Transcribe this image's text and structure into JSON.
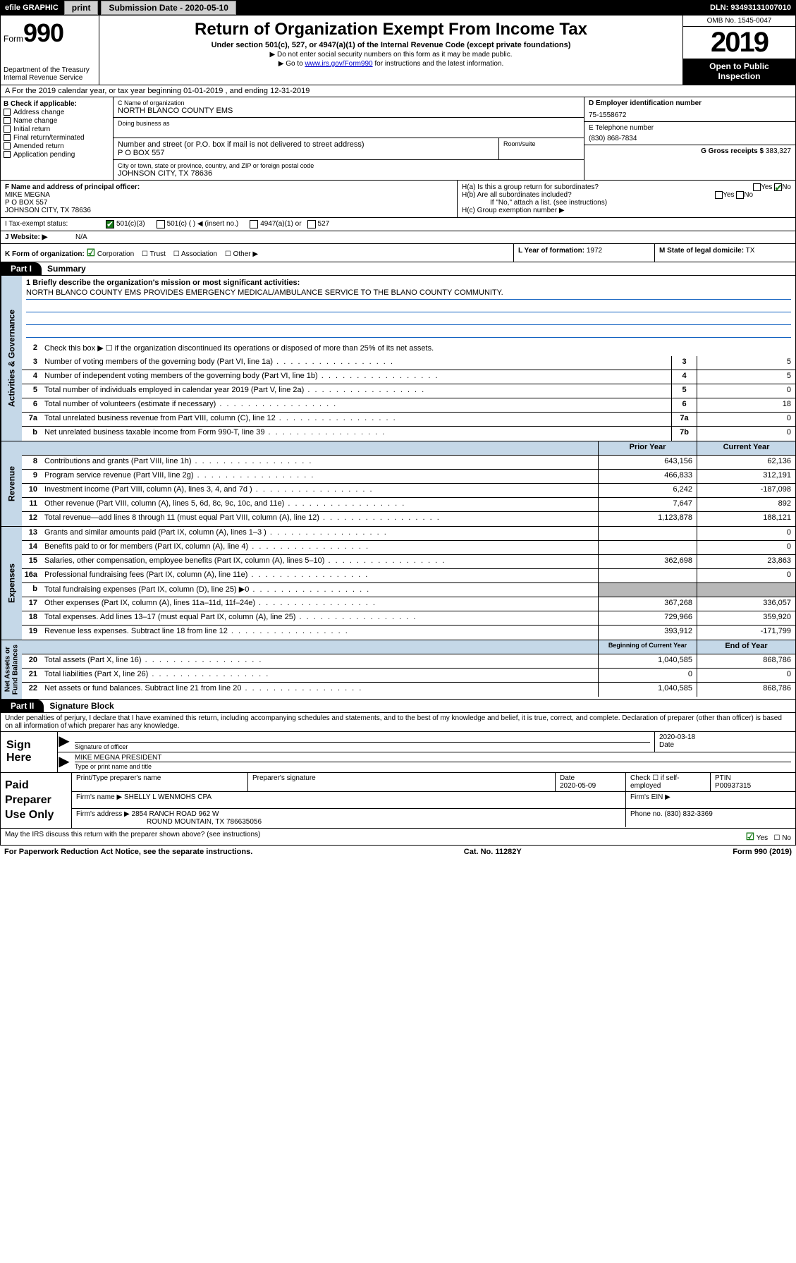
{
  "topbar": {
    "efile": "efile GRAPHIC",
    "print": "print",
    "sub_label": "Submission Date - 2020-05-10",
    "dln": "DLN: 93493131007010"
  },
  "header": {
    "form": "Form",
    "form_num": "990",
    "dept": "Department of the Treasury\nInternal Revenue Service",
    "title": "Return of Organization Exempt From Income Tax",
    "sub1": "Under section 501(c), 527, or 4947(a)(1) of the Internal Revenue Code (except private foundations)",
    "sub2": "▶ Do not enter social security numbers on this form as it may be made public.",
    "sub3": "▶ Go to www.irs.gov/Form990 for instructions and the latest information.",
    "omb": "OMB No. 1545-0047",
    "year": "2019",
    "inspect": "Open to Public\nInspection"
  },
  "row_a": "A For the 2019 calendar year, or tax year beginning 01-01-2019   , and ending 12-31-2019",
  "col_b": {
    "title": "B Check if applicable:",
    "opts": [
      "Address change",
      "Name change",
      "Initial return",
      "Final return/terminated",
      "Amended return",
      "Application pending"
    ]
  },
  "col_c": {
    "name_lbl": "C Name of organization",
    "name": "NORTH BLANCO COUNTY EMS",
    "dba_lbl": "Doing business as",
    "addr_lbl": "Number and street (or P.O. box if mail is not delivered to street address)",
    "addr": "P O BOX 557",
    "room_lbl": "Room/suite",
    "city_lbl": "City or town, state or province, country, and ZIP or foreign postal code",
    "city": "JOHNSON CITY, TX  78636"
  },
  "col_d": {
    "ein_lbl": "D Employer identification number",
    "ein": "75-1558672",
    "tel_lbl": "E Telephone number",
    "tel": "(830) 868-7834",
    "gross_lbl": "G Gross receipts $",
    "gross": "383,327"
  },
  "col_f": {
    "lbl": "F Name and address of principal officer:",
    "name": "MIKE MEGNA",
    "addr1": "P O BOX 557",
    "addr2": "JOHNSON CITY, TX  78636"
  },
  "col_h": {
    "ha": "H(a)  Is this a group return for subordinates?",
    "hb": "H(b)  Are all subordinates included?",
    "hb2": "If \"No,\" attach a list. (see instructions)",
    "hc": "H(c)  Group exemption number ▶",
    "yes": "Yes",
    "no": "No"
  },
  "row_i": {
    "lbl": "I     Tax-exempt status:",
    "o1": "501(c)(3)",
    "o2": "501(c) (  ) ◀ (insert no.)",
    "o3": "4947(a)(1) or",
    "o4": "527"
  },
  "row_j": {
    "lbl": "J   Website: ▶",
    "val": "N/A"
  },
  "row_k": {
    "lbl": "K Form of organization:",
    "corp": "Corporation",
    "trust": "Trust",
    "assoc": "Association",
    "other": "Other ▶",
    "l_lbl": "L Year of formation:",
    "l_val": "1972",
    "m_lbl": "M State of legal domicile:",
    "m_val": "TX"
  },
  "part1": {
    "hdr": "Part I",
    "title": "Summary"
  },
  "mission": {
    "lbl": "1  Briefly describe the organization's mission or most significant activities:",
    "text": "NORTH BLANCO COUNTY EMS PROVIDES EMERGENCY MEDICAL/AMBULANCE SERVICE TO THE BLANO COUNTY COMMUNITY."
  },
  "vtabs": {
    "gov": "Activities & Governance",
    "rev": "Revenue",
    "exp": "Expenses",
    "net": "Net Assets or\nFund Balances"
  },
  "lines_gov": [
    {
      "n": "2",
      "d": "Check this box ▶ ☐  if the organization discontinued its operations or disposed of more than 25% of its net assets.",
      "c": "",
      "v": ""
    },
    {
      "n": "3",
      "d": "Number of voting members of the governing body (Part VI, line 1a)",
      "c": "3",
      "v": "5"
    },
    {
      "n": "4",
      "d": "Number of independent voting members of the governing body (Part VI, line 1b)",
      "c": "4",
      "v": "5"
    },
    {
      "n": "5",
      "d": "Total number of individuals employed in calendar year 2019 (Part V, line 2a)",
      "c": "5",
      "v": "0"
    },
    {
      "n": "6",
      "d": "Total number of volunteers (estimate if necessary)",
      "c": "6",
      "v": "18"
    },
    {
      "n": "7a",
      "d": "Total unrelated business revenue from Part VIII, column (C), line 12",
      "c": "7a",
      "v": "0"
    },
    {
      "n": "b",
      "d": "Net unrelated business taxable income from Form 990-T, line 39",
      "c": "7b",
      "v": "0"
    }
  ],
  "year_hdr": {
    "prior": "Prior Year",
    "current": "Current Year"
  },
  "lines_rev": [
    {
      "n": "8",
      "d": "Contributions and grants (Part VIII, line 1h)",
      "p": "643,156",
      "c": "62,136"
    },
    {
      "n": "9",
      "d": "Program service revenue (Part VIII, line 2g)",
      "p": "466,833",
      "c": "312,191"
    },
    {
      "n": "10",
      "d": "Investment income (Part VIII, column (A), lines 3, 4, and 7d )",
      "p": "6,242",
      "c": "-187,098"
    },
    {
      "n": "11",
      "d": "Other revenue (Part VIII, column (A), lines 5, 6d, 8c, 9c, 10c, and 11e)",
      "p": "7,647",
      "c": "892"
    },
    {
      "n": "12",
      "d": "Total revenue—add lines 8 through 11 (must equal Part VIII, column (A), line 12)",
      "p": "1,123,878",
      "c": "188,121"
    }
  ],
  "lines_exp": [
    {
      "n": "13",
      "d": "Grants and similar amounts paid (Part IX, column (A), lines 1–3 )",
      "p": "",
      "c": "0"
    },
    {
      "n": "14",
      "d": "Benefits paid to or for members (Part IX, column (A), line 4)",
      "p": "",
      "c": "0"
    },
    {
      "n": "15",
      "d": "Salaries, other compensation, employee benefits (Part IX, column (A), lines 5–10)",
      "p": "362,698",
      "c": "23,863"
    },
    {
      "n": "16a",
      "d": "Professional fundraising fees (Part IX, column (A), line 11e)",
      "p": "",
      "c": "0"
    },
    {
      "n": "b",
      "d": "Total fundraising expenses (Part IX, column (D), line 25) ▶0",
      "p": "GREY",
      "c": "GREY"
    },
    {
      "n": "17",
      "d": "Other expenses (Part IX, column (A), lines 11a–11d, 11f–24e)",
      "p": "367,268",
      "c": "336,057"
    },
    {
      "n": "18",
      "d": "Total expenses. Add lines 13–17 (must equal Part IX, column (A), line 25)",
      "p": "729,966",
      "c": "359,920"
    },
    {
      "n": "19",
      "d": "Revenue less expenses. Subtract line 18 from line 12",
      "p": "393,912",
      "c": "-171,799"
    }
  ],
  "net_hdr": {
    "begin": "Beginning of Current Year",
    "end": "End of Year"
  },
  "lines_net": [
    {
      "n": "20",
      "d": "Total assets (Part X, line 16)",
      "p": "1,040,585",
      "c": "868,786"
    },
    {
      "n": "21",
      "d": "Total liabilities (Part X, line 26)",
      "p": "0",
      "c": "0"
    },
    {
      "n": "22",
      "d": "Net assets or fund balances. Subtract line 21 from line 20",
      "p": "1,040,585",
      "c": "868,786"
    }
  ],
  "part2": {
    "hdr": "Part II",
    "title": "Signature Block"
  },
  "sig": {
    "decl": "Under penalties of perjury, I declare that I have examined this return, including accompanying schedules and statements, and to the best of my knowledge and belief, it is true, correct, and complete. Declaration of preparer (other than officer) is based on all information of which preparer has any knowledge.",
    "sign_here": "Sign Here",
    "sig_lbl": "Signature of officer",
    "date": "2020-03-18",
    "date_lbl": "Date",
    "name": "MIKE MEGNA  PRESIDENT",
    "name_lbl": "Type or print name and title"
  },
  "prep": {
    "label": "Paid Preparer Use Only",
    "h1": "Print/Type preparer's name",
    "h2": "Preparer's signature",
    "h3": "Date",
    "h3v": "2020-05-09",
    "h4": "Check ☐ if self-employed",
    "h5": "PTIN",
    "h5v": "P00937315",
    "firm_lbl": "Firm's name    ▶",
    "firm": "SHELLY L WENMOHS CPA",
    "ein_lbl": "Firm's EIN ▶",
    "addr_lbl": "Firm's address ▶",
    "addr1": "2854 RANCH ROAD 962 W",
    "addr2": "ROUND MOUNTAIN, TX  786635056",
    "phone_lbl": "Phone no.",
    "phone": "(830) 832-3369"
  },
  "footer": {
    "q": "May the IRS discuss this return with the preparer shown above? (see instructions)",
    "yes": "Yes",
    "no": "No",
    "pra": "For Paperwork Reduction Act Notice, see the separate instructions.",
    "cat": "Cat. No. 11282Y",
    "form": "Form 990 (2019)"
  },
  "colors": {
    "blue_bg": "#c5d8e8",
    "grey_bg": "#b8b8b8",
    "link": "#0000cc",
    "check": "#1a7a1a"
  }
}
